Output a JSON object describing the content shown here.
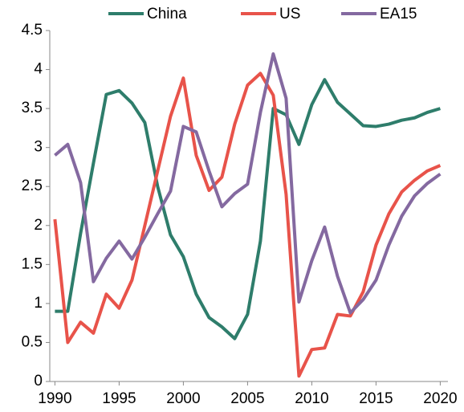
{
  "chart_data": {
    "type": "line",
    "x": [
      1990,
      1991,
      1992,
      1993,
      1994,
      1995,
      1996,
      1997,
      1998,
      1999,
      2000,
      2001,
      2002,
      2003,
      2004,
      2005,
      2006,
      2007,
      2008,
      2009,
      2010,
      2011,
      2012,
      2013,
      2014,
      2015,
      2016,
      2017,
      2018,
      2019,
      2020
    ],
    "series": [
      {
        "name": "China",
        "color": "#2e7d6b",
        "values": [
          0.9,
          0.9,
          1.9,
          2.8,
          3.68,
          3.73,
          3.57,
          3.32,
          2.5,
          1.88,
          1.6,
          1.12,
          0.82,
          0.7,
          0.55,
          0.86,
          1.8,
          3.5,
          3.42,
          3.04,
          3.55,
          3.87,
          3.58,
          3.43,
          3.28,
          3.27,
          3.3,
          3.35,
          3.38,
          3.45,
          3.5
        ]
      },
      {
        "name": "US",
        "color": "#e8534a",
        "values": [
          2.08,
          0.5,
          0.76,
          0.62,
          1.12,
          0.94,
          1.3,
          2.0,
          2.7,
          3.4,
          3.89,
          2.9,
          2.45,
          2.62,
          3.3,
          3.8,
          3.95,
          3.67,
          2.4,
          0.07,
          0.41,
          0.43,
          0.86,
          0.84,
          1.15,
          1.75,
          2.15,
          2.43,
          2.58,
          2.7,
          2.77
        ]
      },
      {
        "name": "EA15",
        "color": "#8469a0",
        "values": [
          2.9,
          3.04,
          2.55,
          1.28,
          1.58,
          1.8,
          1.57,
          1.85,
          2.15,
          2.44,
          3.27,
          3.2,
          2.7,
          2.24,
          2.41,
          2.53,
          3.45,
          4.2,
          3.63,
          1.02,
          1.55,
          1.98,
          1.35,
          0.88,
          1.05,
          1.3,
          1.75,
          2.12,
          2.38,
          2.54,
          2.66
        ]
      }
    ],
    "xlim": [
      1989.6,
      2020.6
    ],
    "xticks": [
      1990,
      1995,
      2000,
      2005,
      2010,
      2015,
      2020
    ],
    "ylim": [
      0,
      4.5
    ],
    "yticks": [
      0,
      0.5,
      1,
      1.5,
      2,
      2.5,
      3,
      3.5,
      4,
      4.5
    ],
    "legend": "top"
  }
}
